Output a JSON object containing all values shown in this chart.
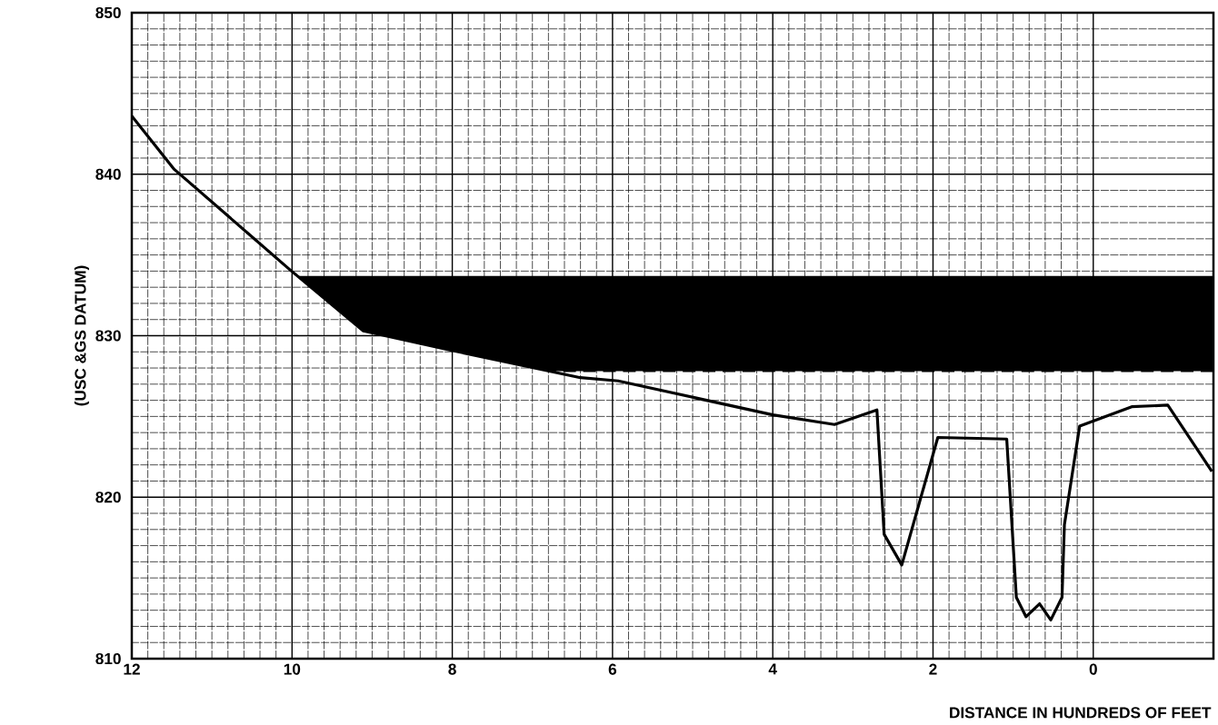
{
  "chart_data": {
    "type": "line",
    "xlabel": "DISTANCE IN HUNDREDS OF FEET",
    "ylabel": "(USC &GS DATUM)",
    "x": [
      12,
      11.47,
      10.03,
      9.11,
      8.02,
      6.4,
      5.93,
      4.0,
      3.23,
      2.7,
      2.61,
      2.39,
      1.94,
      1.08,
      0.96,
      0.84,
      0.67,
      0.53,
      0.39,
      0.36,
      0.17,
      -0.48,
      -0.93,
      -1.48
    ],
    "series": [
      {
        "color": "#000000",
        "values": [
          843.6,
          840.3,
          834.1,
          830.3,
          829.1,
          827.4,
          827.2,
          825.1,
          824.5,
          825.4,
          817.7,
          815.8,
          823.7,
          823.6,
          813.8,
          812.6,
          813.4,
          812.4,
          813.8,
          818.3,
          824.4,
          825.6,
          825.7,
          821.6
        ]
      }
    ],
    "bands": [
      {
        "axis": "y",
        "from": 827.8,
        "to": 833.7,
        "color": "#000000"
      }
    ],
    "ref_lines": [
      {
        "axis": "y",
        "value": 827.8,
        "color": "#000000",
        "line_style": "dashed"
      }
    ],
    "xlim": [
      12,
      -1.5
    ],
    "ylim": [
      810,
      850
    ],
    "xticks": [
      12,
      10,
      8,
      6,
      4,
      2,
      0
    ],
    "yticks": [
      810,
      820,
      830,
      840,
      850
    ],
    "grid": true,
    "line_style": "solid",
    "marker": "none"
  }
}
